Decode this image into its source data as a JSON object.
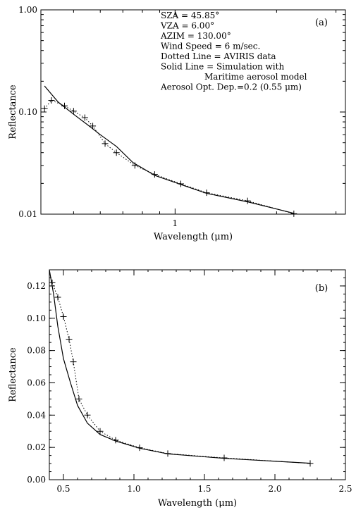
{
  "chart_data": [
    {
      "panel_label": "(a)",
      "type": "line",
      "x_scale": "log",
      "y_scale": "log",
      "xlim": [
        0.4,
        3.2
      ],
      "ylim": [
        0.01,
        1.0
      ],
      "xlabel": "Wavelength (μm)",
      "ylabel": "Reflectance",
      "x_tick_labels": [
        {
          "value": 1,
          "label": "1"
        }
      ],
      "y_tick_labels": [
        {
          "value": 0.01,
          "label": "0.01"
        },
        {
          "value": 0.1,
          "label": "0.10"
        },
        {
          "value": 1.0,
          "label": "1.00"
        }
      ],
      "annotations": [
        "SZA = 45.85°",
        "VZA = 6.00°",
        "AZIM = 130.00°",
        "Wind Speed = 6 m/sec.",
        "Dotted Line = AVIRIS data",
        "Solid Line = Simulation with",
        "Maritime aerosol model",
        "Aerosol Opt. Dep.=0.2 (0.55 μm)"
      ],
      "series": [
        {
          "style": "solid",
          "x": [
            0.41,
            0.45,
            0.5,
            0.55,
            0.6,
            0.67,
            0.75,
            0.87,
            1.04,
            1.24,
            1.64,
            2.25
          ],
          "y": [
            0.18,
            0.125,
            0.095,
            0.075,
            0.06,
            0.046,
            0.032,
            0.024,
            0.0195,
            0.016,
            0.0132,
            0.0102
          ]
        },
        {
          "style": "dotted",
          "markers": "plus",
          "x": [
            0.41,
            0.43,
            0.47,
            0.5,
            0.54,
            0.57,
            0.62,
            0.67,
            0.76,
            0.87,
            1.04,
            1.24,
            1.64,
            2.25
          ],
          "y": [
            0.108,
            0.13,
            0.115,
            0.102,
            0.088,
            0.073,
            0.049,
            0.04,
            0.03,
            0.0245,
            0.0198,
            0.0162,
            0.0135,
            0.0101
          ]
        }
      ]
    },
    {
      "panel_label": "(b)",
      "type": "line",
      "x_scale": "linear",
      "y_scale": "linear",
      "xlim": [
        0.4,
        2.5
      ],
      "ylim": [
        0.0,
        0.13
      ],
      "xlabel": "Wavelength (μm)",
      "ylabel": "Reflectance",
      "x_tick_labels": [
        {
          "value": 0.5,
          "label": "0.5"
        },
        {
          "value": 1.0,
          "label": "1.0"
        },
        {
          "value": 1.5,
          "label": "1.5"
        },
        {
          "value": 2.0,
          "label": "2.0"
        },
        {
          "value": 2.5,
          "label": "2.5"
        }
      ],
      "y_tick_labels": [
        {
          "value": 0.0,
          "label": "0.00"
        },
        {
          "value": 0.02,
          "label": "0.02"
        },
        {
          "value": 0.04,
          "label": "0.04"
        },
        {
          "value": 0.06,
          "label": "0.06"
        },
        {
          "value": 0.08,
          "label": "0.08"
        },
        {
          "value": 0.1,
          "label": "0.10"
        },
        {
          "value": 0.12,
          "label": "0.12"
        }
      ],
      "annotations": [],
      "series": [
        {
          "style": "solid",
          "x": [
            0.4,
            0.43,
            0.46,
            0.5,
            0.55,
            0.6,
            0.67,
            0.76,
            0.87,
            1.04,
            1.24,
            1.64,
            2.25
          ],
          "y": [
            0.13,
            0.115,
            0.095,
            0.075,
            0.06,
            0.046,
            0.035,
            0.028,
            0.024,
            0.0195,
            0.016,
            0.0132,
            0.0102
          ]
        },
        {
          "style": "dotted",
          "markers": "plus",
          "x": [
            0.42,
            0.46,
            0.5,
            0.54,
            0.57,
            0.61,
            0.67,
            0.76,
            0.87,
            1.04,
            1.24,
            1.64,
            2.25
          ],
          "y": [
            0.122,
            0.113,
            0.101,
            0.087,
            0.073,
            0.05,
            0.04,
            0.03,
            0.0245,
            0.0198,
            0.0162,
            0.0135,
            0.0101
          ]
        }
      ]
    }
  ]
}
